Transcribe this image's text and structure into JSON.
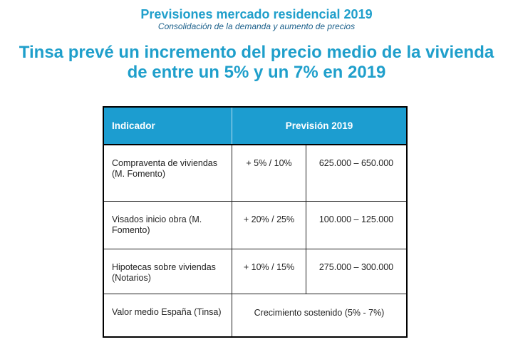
{
  "header": {
    "title": "Previsiones mercado residencial 2019",
    "subtitle": "Consolidación de la demanda y aumento de precios"
  },
  "headline": {
    "line1": "Tinsa prevé un incremento del precio medio de la vivienda",
    "line2": "de entre un 5% y un 7% en 2019"
  },
  "table": {
    "headers": {
      "indicador": "Indicador",
      "prevision": "Previsión 2019"
    },
    "rows": [
      {
        "indicator": "Compraventa de viviendas (M. Fomento)",
        "percent": "+ 5% / 10%",
        "range": "625.000 – 650.000"
      },
      {
        "indicator": "Visados inicio obra (M. Fomento)",
        "percent": "+ 20% / 25%",
        "range": "100.000 – 125.000"
      },
      {
        "indicator": "Hipotecas  sobre viviendas (Notarios)",
        "percent": "+ 10% / 15%",
        "range": "275.000 – 300.000"
      },
      {
        "indicator": "Valor medio España (Tinsa)",
        "merged": "Crecimiento sostenido (5% - 7%)"
      }
    ]
  },
  "colors": {
    "accent": "#1f9fcb",
    "subtitle": "#1a5f8a",
    "header_bg": "#1c9dd0",
    "border": "#000000"
  }
}
